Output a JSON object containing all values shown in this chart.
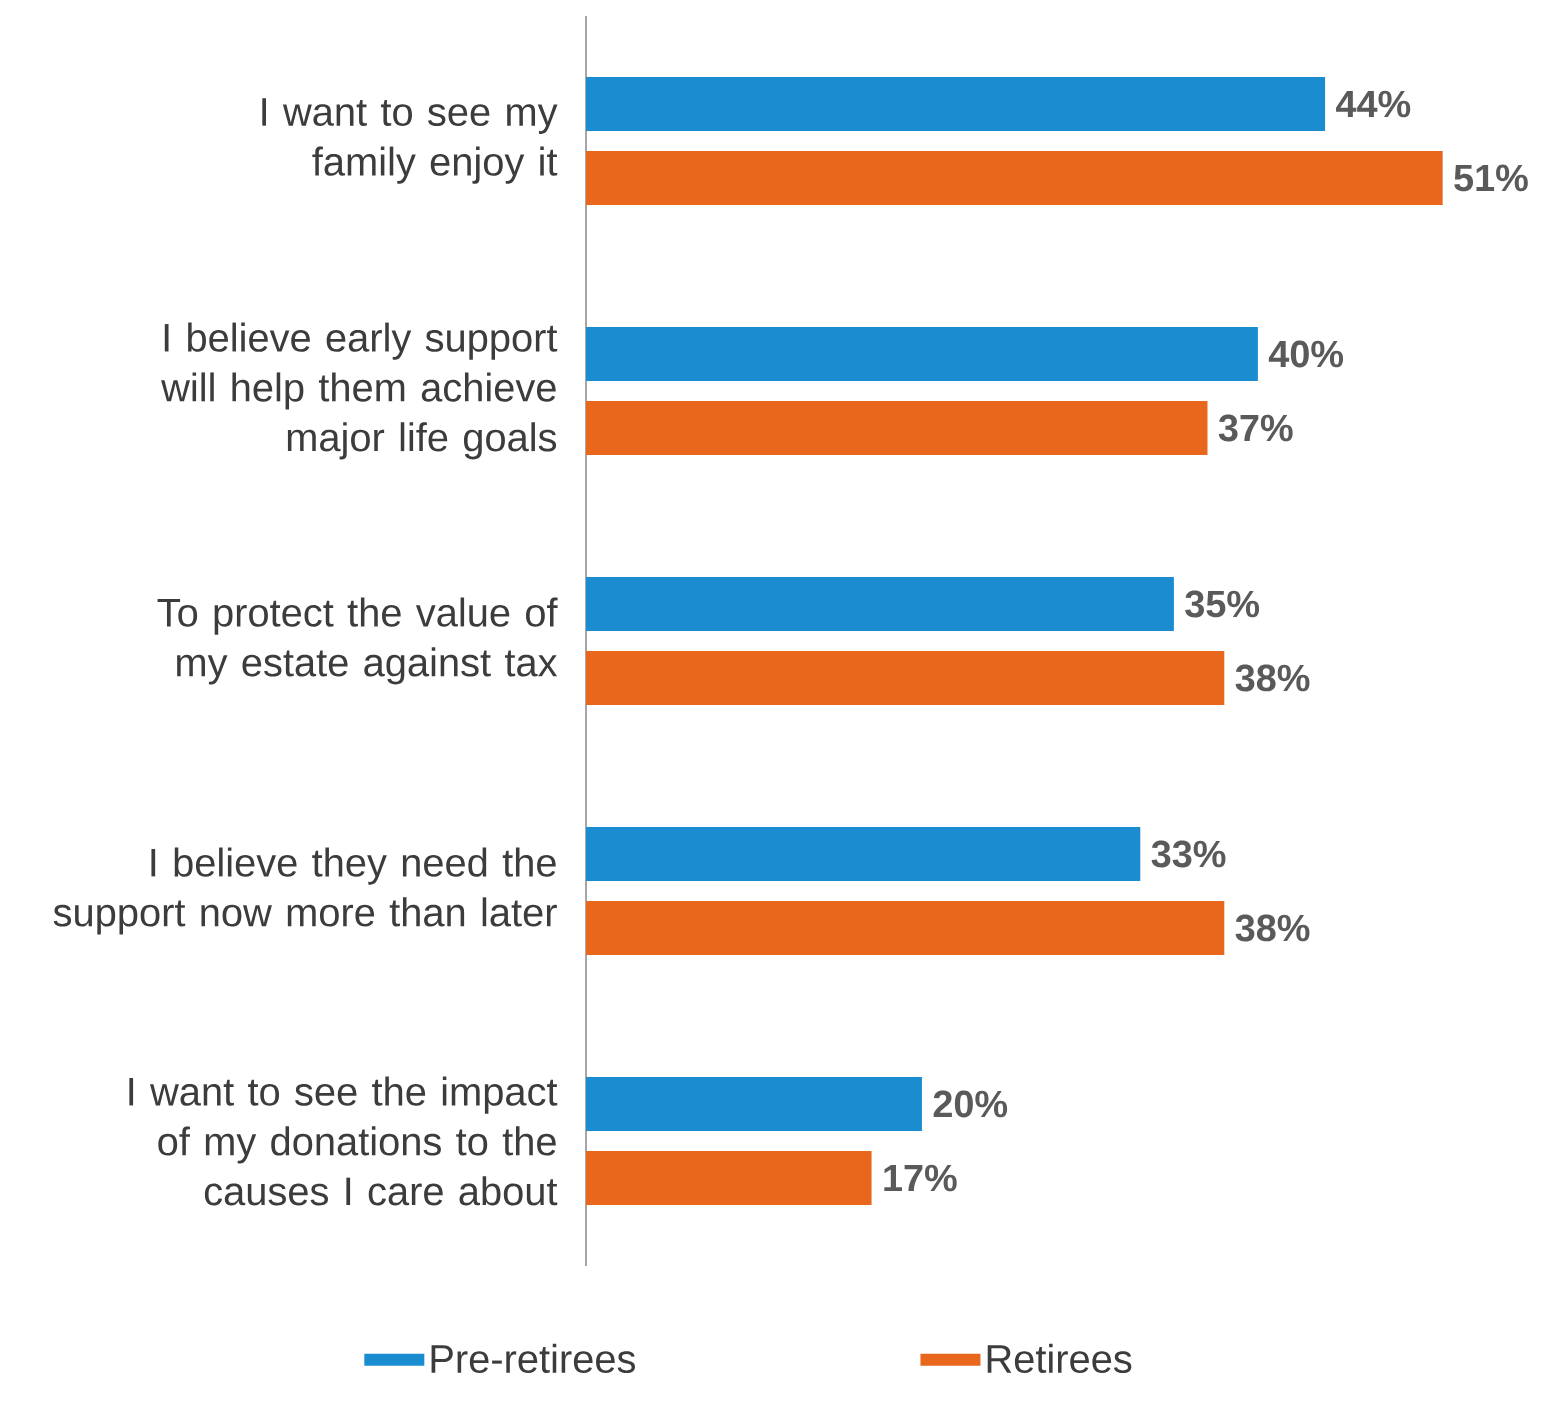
{
  "chart_data": {
    "type": "bar",
    "orientation": "horizontal",
    "categories": [
      "I want to see my family enjoy it",
      "I believe early support will help them achieve major life goals",
      "To protect the value of my estate against tax",
      "I believe they need the support now more than later",
      "I want to see the impact of my donations to the causes I care about"
    ],
    "series": [
      {
        "name": "Pre-retirees",
        "color": "#1a8ccf",
        "values": [
          44,
          40,
          35,
          33,
          20
        ],
        "value_labels": [
          "44%",
          "40%",
          "35%",
          "33%",
          "20%"
        ]
      },
      {
        "name": "Retirees",
        "color": "#e8671c",
        "values": [
          51,
          37,
          38,
          38,
          17
        ],
        "value_labels": [
          "51%",
          "37%",
          "38%",
          "38%",
          "17%"
        ]
      }
    ],
    "legend": "bottom"
  }
}
